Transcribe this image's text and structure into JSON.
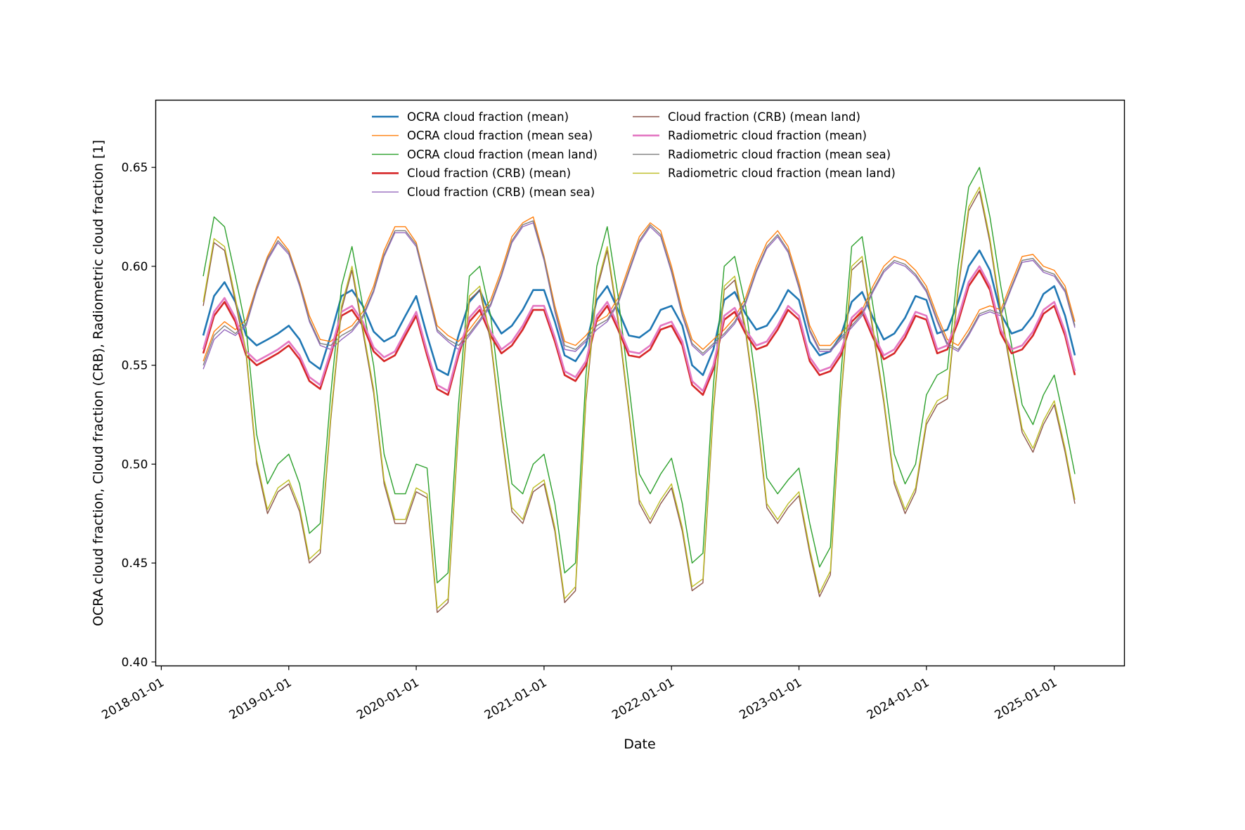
{
  "chart_data": {
    "type": "line",
    "title": "",
    "xlabel": "Date",
    "ylabel": "OCRA cloud fraction, Cloud fraction (CRB), Radiometric cloud fraction [1]",
    "x_ticks": [
      "2018-01-01",
      "2019-01-01",
      "2020-01-01",
      "2021-01-01",
      "2022-01-01",
      "2023-01-01",
      "2024-01-01",
      "2025-01-01"
    ],
    "y_ticks": [
      "0.40",
      "0.45",
      "0.50",
      "0.55",
      "0.60",
      "0.65"
    ],
    "xlim": [
      "2017-12-16",
      "2025-07-21"
    ],
    "ylim": [
      0.398,
      0.684
    ],
    "grid": false,
    "legend_position": "upper center",
    "legend_columns": 2,
    "x": [
      "2018-05-01",
      "2018-06-01",
      "2018-07-01",
      "2018-08-01",
      "2018-09-01",
      "2018-10-01",
      "2018-11-01",
      "2018-12-01",
      "2019-01-01",
      "2019-02-01",
      "2019-03-01",
      "2019-04-01",
      "2019-05-01",
      "2019-06-01",
      "2019-07-01",
      "2019-08-01",
      "2019-09-01",
      "2019-10-01",
      "2019-11-01",
      "2019-12-01",
      "2020-01-01",
      "2020-02-01",
      "2020-03-01",
      "2020-04-01",
      "2020-05-01",
      "2020-06-01",
      "2020-07-01",
      "2020-08-01",
      "2020-09-01",
      "2020-10-01",
      "2020-11-01",
      "2020-12-01",
      "2021-01-01",
      "2021-02-01",
      "2021-03-01",
      "2021-04-01",
      "2021-05-01",
      "2021-06-01",
      "2021-07-01",
      "2021-08-01",
      "2021-09-01",
      "2021-10-01",
      "2021-11-01",
      "2021-12-01",
      "2022-01-01",
      "2022-02-01",
      "2022-03-01",
      "2022-04-01",
      "2022-05-01",
      "2022-06-01",
      "2022-07-01",
      "2022-08-01",
      "2022-09-01",
      "2022-10-01",
      "2022-11-01",
      "2022-12-01",
      "2023-01-01",
      "2023-02-01",
      "2023-03-01",
      "2023-04-01",
      "2023-05-01",
      "2023-06-01",
      "2023-07-01",
      "2023-08-01",
      "2023-09-01",
      "2023-10-01",
      "2023-11-01",
      "2023-12-01",
      "2024-01-01",
      "2024-02-01",
      "2024-03-01",
      "2024-04-01",
      "2024-05-01",
      "2024-06-01",
      "2024-07-01",
      "2024-08-01",
      "2024-09-01",
      "2024-10-01",
      "2024-11-01",
      "2024-12-01",
      "2025-01-01",
      "2025-02-01",
      "2025-03-01"
    ],
    "series": [
      {
        "name": "OCRA cloud fraction (mean)",
        "color": "#1f77b4",
        "width": 2.6,
        "values": [
          0.565,
          0.585,
          0.592,
          0.582,
          0.565,
          0.56,
          0.563,
          0.566,
          0.57,
          0.563,
          0.552,
          0.548,
          0.565,
          0.585,
          0.588,
          0.58,
          0.567,
          0.562,
          0.565,
          0.575,
          0.585,
          0.565,
          0.548,
          0.545,
          0.565,
          0.582,
          0.588,
          0.575,
          0.566,
          0.57,
          0.578,
          0.588,
          0.588,
          0.572,
          0.555,
          0.552,
          0.56,
          0.583,
          0.59,
          0.578,
          0.565,
          0.564,
          0.568,
          0.578,
          0.58,
          0.57,
          0.55,
          0.545,
          0.558,
          0.583,
          0.587,
          0.576,
          0.568,
          0.57,
          0.578,
          0.588,
          0.583,
          0.562,
          0.555,
          0.557,
          0.565,
          0.582,
          0.587,
          0.574,
          0.563,
          0.566,
          0.574,
          0.585,
          0.583,
          0.566,
          0.568,
          0.582,
          0.6,
          0.608,
          0.598,
          0.576,
          0.566,
          0.568,
          0.575,
          0.586,
          0.59,
          0.575,
          0.555
        ]
      },
      {
        "name": "OCRA cloud fraction (mean sea)",
        "color": "#ff7f0e",
        "width": 1.4,
        "values": [
          0.552,
          0.567,
          0.572,
          0.568,
          0.573,
          0.59,
          0.605,
          0.615,
          0.608,
          0.592,
          0.575,
          0.563,
          0.562,
          0.567,
          0.57,
          0.577,
          0.59,
          0.608,
          0.62,
          0.62,
          0.612,
          0.59,
          0.57,
          0.565,
          0.562,
          0.568,
          0.575,
          0.583,
          0.598,
          0.615,
          0.622,
          0.625,
          0.605,
          0.58,
          0.562,
          0.56,
          0.565,
          0.572,
          0.575,
          0.584,
          0.6,
          0.615,
          0.622,
          0.618,
          0.6,
          0.578,
          0.563,
          0.558,
          0.563,
          0.568,
          0.574,
          0.584,
          0.6,
          0.612,
          0.618,
          0.61,
          0.592,
          0.57,
          0.56,
          0.56,
          0.566,
          0.572,
          0.578,
          0.59,
          0.6,
          0.605,
          0.603,
          0.598,
          0.59,
          0.575,
          0.563,
          0.56,
          0.568,
          0.578,
          0.58,
          0.578,
          0.592,
          0.605,
          0.606,
          0.6,
          0.598,
          0.59,
          0.572
        ]
      },
      {
        "name": "OCRA cloud fraction (mean land)",
        "color": "#2ca02c",
        "width": 1.4,
        "values": [
          0.595,
          0.625,
          0.62,
          0.595,
          0.568,
          0.515,
          0.49,
          0.5,
          0.505,
          0.49,
          0.465,
          0.47,
          0.535,
          0.59,
          0.61,
          0.58,
          0.55,
          0.505,
          0.485,
          0.485,
          0.5,
          0.498,
          0.44,
          0.445,
          0.53,
          0.595,
          0.6,
          0.575,
          0.53,
          0.49,
          0.485,
          0.5,
          0.505,
          0.48,
          0.445,
          0.45,
          0.545,
          0.6,
          0.62,
          0.585,
          0.54,
          0.495,
          0.485,
          0.495,
          0.503,
          0.48,
          0.45,
          0.455,
          0.54,
          0.6,
          0.605,
          0.58,
          0.54,
          0.493,
          0.485,
          0.492,
          0.498,
          0.47,
          0.448,
          0.458,
          0.545,
          0.61,
          0.615,
          0.58,
          0.545,
          0.505,
          0.49,
          0.5,
          0.535,
          0.545,
          0.548,
          0.6,
          0.64,
          0.65,
          0.625,
          0.59,
          0.56,
          0.53,
          0.52,
          0.535,
          0.545,
          0.52,
          0.495
        ]
      },
      {
        "name": "Cloud fraction (CRB) (mean)",
        "color": "#d62728",
        "width": 2.6,
        "values": [
          0.556,
          0.575,
          0.582,
          0.572,
          0.555,
          0.55,
          0.553,
          0.556,
          0.56,
          0.553,
          0.542,
          0.538,
          0.555,
          0.575,
          0.578,
          0.57,
          0.557,
          0.552,
          0.555,
          0.565,
          0.575,
          0.555,
          0.538,
          0.535,
          0.555,
          0.572,
          0.578,
          0.565,
          0.556,
          0.56,
          0.568,
          0.578,
          0.578,
          0.562,
          0.545,
          0.542,
          0.55,
          0.573,
          0.58,
          0.568,
          0.555,
          0.554,
          0.558,
          0.568,
          0.57,
          0.56,
          0.54,
          0.535,
          0.548,
          0.573,
          0.577,
          0.566,
          0.558,
          0.56,
          0.568,
          0.578,
          0.573,
          0.552,
          0.545,
          0.547,
          0.555,
          0.572,
          0.577,
          0.564,
          0.553,
          0.556,
          0.564,
          0.575,
          0.573,
          0.556,
          0.558,
          0.572,
          0.59,
          0.598,
          0.588,
          0.566,
          0.556,
          0.558,
          0.565,
          0.576,
          0.58,
          0.565,
          0.545
        ]
      },
      {
        "name": "Cloud fraction (CRB) (mean sea)",
        "color": "#9467bd",
        "width": 1.4,
        "values": [
          0.548,
          0.563,
          0.568,
          0.565,
          0.57,
          0.588,
          0.603,
          0.612,
          0.606,
          0.59,
          0.572,
          0.56,
          0.558,
          0.563,
          0.567,
          0.574,
          0.587,
          0.605,
          0.617,
          0.617,
          0.61,
          0.588,
          0.567,
          0.562,
          0.558,
          0.565,
          0.572,
          0.58,
          0.595,
          0.612,
          0.62,
          0.622,
          0.603,
          0.577,
          0.558,
          0.557,
          0.562,
          0.568,
          0.572,
          0.581,
          0.597,
          0.612,
          0.62,
          0.615,
          0.597,
          0.575,
          0.56,
          0.555,
          0.56,
          0.565,
          0.571,
          0.581,
          0.597,
          0.609,
          0.615,
          0.607,
          0.589,
          0.567,
          0.557,
          0.557,
          0.563,
          0.569,
          0.575,
          0.587,
          0.597,
          0.602,
          0.6,
          0.595,
          0.587,
          0.572,
          0.56,
          0.557,
          0.565,
          0.575,
          0.577,
          0.575,
          0.589,
          0.602,
          0.603,
          0.597,
          0.595,
          0.587,
          0.569
        ]
      },
      {
        "name": "Cloud fraction (CRB) (mean land)",
        "color": "#8c564b",
        "width": 1.4,
        "values": [
          0.58,
          0.612,
          0.608,
          0.582,
          0.555,
          0.5,
          0.475,
          0.486,
          0.49,
          0.476,
          0.45,
          0.455,
          0.522,
          0.578,
          0.598,
          0.567,
          0.536,
          0.49,
          0.47,
          0.47,
          0.486,
          0.483,
          0.425,
          0.43,
          0.517,
          0.583,
          0.588,
          0.562,
          0.516,
          0.476,
          0.47,
          0.486,
          0.49,
          0.466,
          0.43,
          0.436,
          0.532,
          0.588,
          0.608,
          0.572,
          0.526,
          0.48,
          0.47,
          0.48,
          0.488,
          0.466,
          0.436,
          0.44,
          0.527,
          0.588,
          0.593,
          0.567,
          0.526,
          0.478,
          0.47,
          0.478,
          0.484,
          0.455,
          0.433,
          0.444,
          0.532,
          0.598,
          0.603,
          0.567,
          0.531,
          0.49,
          0.475,
          0.486,
          0.52,
          0.53,
          0.533,
          0.588,
          0.628,
          0.638,
          0.612,
          0.576,
          0.545,
          0.516,
          0.506,
          0.52,
          0.53,
          0.506,
          0.48
        ]
      },
      {
        "name": "Radiometric cloud fraction (mean)",
        "color": "#e377c2",
        "width": 2.6,
        "values": [
          0.558,
          0.577,
          0.584,
          0.574,
          0.557,
          0.552,
          0.555,
          0.558,
          0.562,
          0.555,
          0.544,
          0.54,
          0.557,
          0.577,
          0.58,
          0.572,
          0.559,
          0.554,
          0.557,
          0.567,
          0.577,
          0.557,
          0.54,
          0.537,
          0.557,
          0.574,
          0.58,
          0.567,
          0.558,
          0.562,
          0.57,
          0.58,
          0.58,
          0.564,
          0.547,
          0.544,
          0.552,
          0.575,
          0.582,
          0.57,
          0.557,
          0.556,
          0.56,
          0.57,
          0.572,
          0.562,
          0.542,
          0.537,
          0.55,
          0.575,
          0.579,
          0.568,
          0.56,
          0.562,
          0.57,
          0.58,
          0.575,
          0.554,
          0.547,
          0.549,
          0.557,
          0.574,
          0.579,
          0.566,
          0.555,
          0.558,
          0.566,
          0.577,
          0.575,
          0.558,
          0.56,
          0.574,
          0.592,
          0.6,
          0.59,
          0.568,
          0.558,
          0.56,
          0.567,
          0.578,
          0.582,
          0.567,
          0.547
        ]
      },
      {
        "name": "Radiometric cloud fraction (mean sea)",
        "color": "#7f7f7f",
        "width": 1.4,
        "values": [
          0.55,
          0.565,
          0.57,
          0.566,
          0.571,
          0.589,
          0.604,
          0.613,
          0.607,
          0.591,
          0.573,
          0.561,
          0.56,
          0.565,
          0.568,
          0.575,
          0.588,
          0.606,
          0.618,
          0.618,
          0.611,
          0.589,
          0.568,
          0.563,
          0.56,
          0.566,
          0.573,
          0.581,
          0.596,
          0.613,
          0.621,
          0.623,
          0.604,
          0.578,
          0.56,
          0.558,
          0.563,
          0.57,
          0.573,
          0.582,
          0.598,
          0.613,
          0.621,
          0.616,
          0.598,
          0.576,
          0.561,
          0.556,
          0.561,
          0.566,
          0.572,
          0.582,
          0.598,
          0.61,
          0.616,
          0.608,
          0.59,
          0.568,
          0.558,
          0.558,
          0.564,
          0.57,
          0.576,
          0.588,
          0.598,
          0.603,
          0.601,
          0.596,
          0.588,
          0.573,
          0.561,
          0.558,
          0.566,
          0.576,
          0.578,
          0.576,
          0.59,
          0.603,
          0.604,
          0.598,
          0.596,
          0.588,
          0.57
        ]
      },
      {
        "name": "Radiometric cloud fraction (mean land)",
        "color": "#bcbd22",
        "width": 1.4,
        "values": [
          0.582,
          0.614,
          0.61,
          0.584,
          0.557,
          0.502,
          0.477,
          0.488,
          0.492,
          0.478,
          0.452,
          0.457,
          0.524,
          0.58,
          0.6,
          0.569,
          0.538,
          0.492,
          0.472,
          0.472,
          0.488,
          0.485,
          0.427,
          0.432,
          0.519,
          0.585,
          0.59,
          0.564,
          0.518,
          0.478,
          0.472,
          0.488,
          0.492,
          0.468,
          0.432,
          0.438,
          0.534,
          0.59,
          0.61,
          0.574,
          0.528,
          0.482,
          0.472,
          0.482,
          0.49,
          0.468,
          0.438,
          0.442,
          0.529,
          0.59,
          0.595,
          0.569,
          0.528,
          0.48,
          0.472,
          0.48,
          0.486,
          0.457,
          0.435,
          0.446,
          0.534,
          0.6,
          0.605,
          0.569,
          0.533,
          0.492,
          0.477,
          0.488,
          0.522,
          0.532,
          0.535,
          0.59,
          0.63,
          0.64,
          0.614,
          0.578,
          0.547,
          0.518,
          0.508,
          0.522,
          0.532,
          0.508,
          0.482
        ]
      }
    ]
  }
}
